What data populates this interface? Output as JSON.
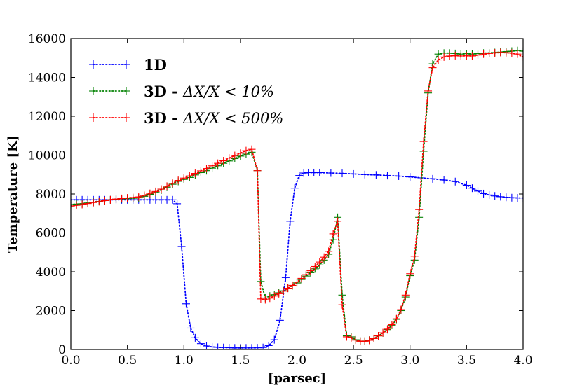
{
  "chart_data": {
    "type": "line",
    "title": "",
    "xlabel": "[parsec]",
    "ylabel": "Temperature [K]",
    "xlim": [
      0.0,
      4.0
    ],
    "ylim": [
      0,
      16000
    ],
    "x_ticks": [
      "0.0",
      "0.5",
      "1.0",
      "1.5",
      "2.0",
      "2.5",
      "3.0",
      "3.5",
      "4.0"
    ],
    "y_ticks": [
      "0",
      "2000",
      "4000",
      "6000",
      "8000",
      "10000",
      "12000",
      "14000",
      "16000"
    ],
    "legend_position": "top-left",
    "series": [
      {
        "name": "1D",
        "legend_bold": "1D",
        "legend_math": "",
        "color": "#0000ff",
        "marker": "+",
        "x": [
          0.0,
          0.05,
          0.1,
          0.15,
          0.2,
          0.25,
          0.3,
          0.35,
          0.4,
          0.45,
          0.5,
          0.55,
          0.6,
          0.65,
          0.7,
          0.75,
          0.8,
          0.85,
          0.9,
          0.94,
          0.98,
          1.02,
          1.06,
          1.1,
          1.15,
          1.2,
          1.25,
          1.3,
          1.35,
          1.4,
          1.45,
          1.5,
          1.55,
          1.6,
          1.65,
          1.7,
          1.75,
          1.8,
          1.85,
          1.9,
          1.94,
          1.98,
          2.02,
          2.06,
          2.1,
          2.15,
          2.2,
          2.3,
          2.4,
          2.5,
          2.6,
          2.7,
          2.8,
          2.9,
          3.0,
          3.1,
          3.2,
          3.3,
          3.4,
          3.5,
          3.55,
          3.6,
          3.65,
          3.7,
          3.75,
          3.8,
          3.85,
          3.9,
          3.95,
          4.0
        ],
        "y": [
          7700,
          7700,
          7700,
          7700,
          7700,
          7700,
          7700,
          7700,
          7700,
          7700,
          7700,
          7700,
          7700,
          7700,
          7700,
          7700,
          7700,
          7700,
          7700,
          7500,
          5300,
          2350,
          1100,
          600,
          300,
          180,
          130,
          110,
          100,
          90,
          80,
          80,
          80,
          80,
          85,
          100,
          200,
          500,
          1500,
          3700,
          6600,
          8300,
          8950,
          9080,
          9100,
          9100,
          9100,
          9080,
          9060,
          9030,
          9000,
          8980,
          8950,
          8920,
          8880,
          8830,
          8780,
          8720,
          8640,
          8450,
          8300,
          8150,
          8020,
          7950,
          7900,
          7860,
          7830,
          7810,
          7800,
          7800
        ]
      },
      {
        "name": "3D - ΔX/X < 10%",
        "legend_bold": "3D - ",
        "legend_math": "ΔX/X < 10%",
        "color": "#008000",
        "marker": "+",
        "x": [
          0.0,
          0.05,
          0.1,
          0.15,
          0.2,
          0.25,
          0.3,
          0.35,
          0.4,
          0.45,
          0.5,
          0.55,
          0.6,
          0.65,
          0.7,
          0.75,
          0.8,
          0.85,
          0.9,
          0.95,
          1.0,
          1.05,
          1.1,
          1.15,
          1.2,
          1.25,
          1.3,
          1.35,
          1.4,
          1.45,
          1.5,
          1.55,
          1.6,
          1.65,
          1.68,
          1.72,
          1.76,
          1.8,
          1.84,
          1.88,
          1.92,
          1.96,
          2.0,
          2.04,
          2.08,
          2.12,
          2.16,
          2.2,
          2.24,
          2.28,
          2.32,
          2.36,
          2.4,
          2.44,
          2.48,
          2.52,
          2.56,
          2.6,
          2.64,
          2.68,
          2.72,
          2.76,
          2.8,
          2.84,
          2.88,
          2.92,
          2.96,
          3.0,
          3.04,
          3.08,
          3.12,
          3.16,
          3.2,
          3.25,
          3.3,
          3.35,
          3.4,
          3.45,
          3.5,
          3.55,
          3.6,
          3.65,
          3.7,
          3.75,
          3.8,
          3.85,
          3.9,
          3.95,
          4.0
        ],
        "y": [
          7450,
          7480,
          7500,
          7540,
          7580,
          7620,
          7660,
          7700,
          7730,
          7750,
          7760,
          7780,
          7800,
          7880,
          7980,
          8080,
          8200,
          8350,
          8500,
          8650,
          8750,
          8850,
          8980,
          9100,
          9200,
          9330,
          9450,
          9580,
          9700,
          9820,
          9950,
          10050,
          10150,
          9200,
          3500,
          2650,
          2750,
          2820,
          2920,
          3020,
          3150,
          3280,
          3420,
          3600,
          3780,
          3950,
          4150,
          4350,
          4600,
          4900,
          5650,
          6800,
          2800,
          700,
          650,
          500,
          430,
          430,
          480,
          560,
          700,
          850,
          1020,
          1250,
          1550,
          2000,
          2700,
          3800,
          4600,
          6800,
          10200,
          13200,
          14700,
          15200,
          15250,
          15250,
          15230,
          15200,
          15220,
          15200,
          15230,
          15250,
          15260,
          15280,
          15300,
          15330,
          15350,
          15380,
          15350
        ]
      },
      {
        "name": "3D - ΔX/X < 500%",
        "legend_bold": "3D - ",
        "legend_math": "ΔX/X < 500%",
        "color": "#ff0000",
        "marker": "+",
        "x": [
          0.0,
          0.05,
          0.1,
          0.15,
          0.2,
          0.25,
          0.3,
          0.35,
          0.4,
          0.45,
          0.5,
          0.55,
          0.6,
          0.65,
          0.7,
          0.75,
          0.8,
          0.85,
          0.9,
          0.95,
          1.0,
          1.05,
          1.1,
          1.15,
          1.2,
          1.25,
          1.3,
          1.35,
          1.4,
          1.45,
          1.5,
          1.55,
          1.6,
          1.65,
          1.68,
          1.72,
          1.76,
          1.8,
          1.84,
          1.88,
          1.92,
          1.96,
          2.0,
          2.04,
          2.08,
          2.12,
          2.16,
          2.2,
          2.24,
          2.28,
          2.32,
          2.36,
          2.4,
          2.44,
          2.48,
          2.52,
          2.56,
          2.6,
          2.64,
          2.68,
          2.72,
          2.76,
          2.8,
          2.84,
          2.88,
          2.92,
          2.96,
          3.0,
          3.04,
          3.08,
          3.12,
          3.16,
          3.2,
          3.25,
          3.3,
          3.35,
          3.4,
          3.45,
          3.5,
          3.55,
          3.6,
          3.65,
          3.7,
          3.75,
          3.8,
          3.85,
          3.9,
          3.95,
          4.0
        ],
        "y": [
          7380,
          7420,
          7460,
          7510,
          7560,
          7610,
          7660,
          7700,
          7740,
          7770,
          7800,
          7820,
          7850,
          7930,
          8030,
          8130,
          8250,
          8400,
          8550,
          8700,
          8820,
          8930,
          9060,
          9190,
          9310,
          9450,
          9580,
          9710,
          9850,
          9980,
          10100,
          10230,
          10300,
          9200,
          2600,
          2560,
          2640,
          2750,
          2870,
          3000,
          3150,
          3300,
          3470,
          3660,
          3850,
          4050,
          4270,
          4500,
          4750,
          5050,
          5950,
          6600,
          2300,
          650,
          600,
          480,
          420,
          420,
          470,
          560,
          700,
          860,
          1050,
          1280,
          1580,
          2050,
          2800,
          3900,
          4800,
          7200,
          10700,
          13300,
          14500,
          14900,
          15050,
          15100,
          15120,
          15100,
          15110,
          15100,
          15150,
          15200,
          15230,
          15260,
          15280,
          15270,
          15250,
          15200,
          15050
        ]
      }
    ]
  }
}
